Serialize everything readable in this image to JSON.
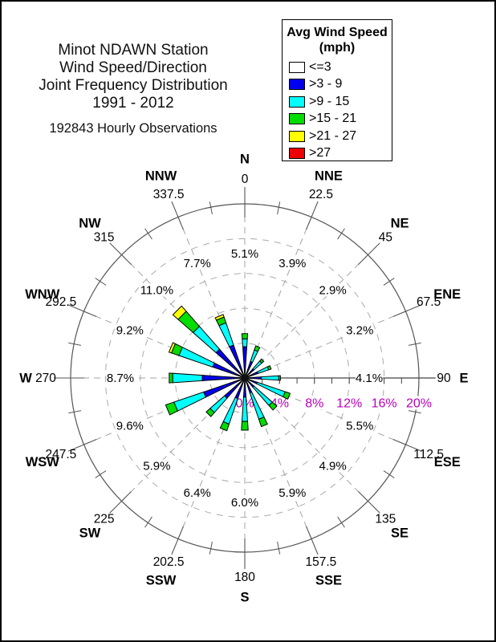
{
  "page": {
    "background_color": "#FFFFFF",
    "border_color": "#000000"
  },
  "title": {
    "lines": [
      "Minot NDAWN Station",
      "Wind Speed/Direction",
      "Joint Frequency Distribution",
      "1991 - 2012"
    ],
    "subtitle": "192843 Hourly Observations"
  },
  "legend": {
    "title_lines": [
      "Avg Wind Speed",
      "(mph)"
    ],
    "items": [
      {
        "label": "<=3",
        "color": "#FFFFFF"
      },
      {
        "label": ">3 - 9",
        "color": "#0000EE"
      },
      {
        "label": ">9 - 15",
        "color": "#00FFFF"
      },
      {
        "label": ">15 - 21",
        "color": "#00DD00"
      },
      {
        "label": ">21 - 27",
        "color": "#FFFF00"
      },
      {
        "label": ">27",
        "color": "#EE0000"
      }
    ]
  },
  "chart_data": {
    "type": "bar",
    "subtype": "wind-rose-polar-stacked",
    "title": "Wind Speed/Direction Joint Frequency Distribution",
    "units": "percent of hourly observations",
    "grid": "dashed rings every 4%, dashed spokes every 22.5 degrees",
    "legend_position": "top-right",
    "radial_axis": {
      "min": 0,
      "max": 20,
      "grid_rings_pct": [
        4,
        8,
        12,
        16
      ],
      "outer_ring_pct": 20,
      "minor_tick_step_pct": 2,
      "tick_labels": [
        {
          "value": 0,
          "label": "0%"
        },
        {
          "value": 4,
          "label": "4%"
        },
        {
          "value": 8,
          "label": "8%"
        },
        {
          "value": 12,
          "label": "12%"
        },
        {
          "value": 16,
          "label": "16%"
        },
        {
          "value": 20,
          "label": "20%"
        }
      ],
      "tick_label_color": "#BB00BB"
    },
    "speed_bins": [
      "<=3",
      ">3 - 9",
      ">9 - 15",
      ">15 - 21",
      ">21 - 27",
      ">27"
    ],
    "bin_colors": [
      "#FFFFFF",
      "#0000EE",
      "#00FFFF",
      "#00DD00",
      "#FFFF00",
      "#EE0000"
    ],
    "directions": [
      {
        "name": "N",
        "degrees_label": "0",
        "angle": 0,
        "total_label": "5.1%",
        "total_pct": 5.1,
        "segments_pct": [
          0,
          3.6,
          0.9,
          0.6,
          0,
          0
        ]
      },
      {
        "name": "NNE",
        "degrees_label": "22.5",
        "angle": 22.5,
        "total_label": "3.9%",
        "total_pct": 3.9,
        "segments_pct": [
          0,
          2.0,
          1.4,
          0.5,
          0,
          0
        ]
      },
      {
        "name": "NE",
        "degrees_label": "45",
        "angle": 45,
        "total_label": "2.9%",
        "total_pct": 2.9,
        "segments_pct": [
          0,
          1.4,
          1.2,
          0.3,
          0,
          0
        ]
      },
      {
        "name": "ENE",
        "degrees_label": "67.5",
        "angle": 67.5,
        "total_label": "3.2%",
        "total_pct": 3.2,
        "segments_pct": [
          0,
          1.6,
          1.3,
          0.3,
          0,
          0
        ]
      },
      {
        "name": "E",
        "degrees_label": "90",
        "angle": 90,
        "total_label": "4.1%",
        "total_pct": 4.1,
        "segments_pct": [
          0,
          1.9,
          2.0,
          0.2,
          0,
          0
        ]
      },
      {
        "name": "ESE",
        "degrees_label": "112.5",
        "angle": 112.5,
        "total_label": "5.5%",
        "total_pct": 5.5,
        "segments_pct": [
          0,
          1.5,
          3.4,
          0.6,
          0,
          0
        ]
      },
      {
        "name": "SE",
        "degrees_label": "135",
        "angle": 135,
        "total_label": "4.9%",
        "total_pct": 4.9,
        "segments_pct": [
          0,
          1.4,
          2.8,
          0.7,
          0,
          0
        ]
      },
      {
        "name": "SSE",
        "degrees_label": "157.5",
        "angle": 157.5,
        "total_label": "5.9%",
        "total_pct": 5.9,
        "segments_pct": [
          0,
          1.8,
          3.2,
          0.9,
          0,
          0
        ]
      },
      {
        "name": "S",
        "degrees_label": "180",
        "angle": 180,
        "total_label": "6.0%",
        "total_pct": 6.0,
        "segments_pct": [
          0,
          2.2,
          2.8,
          1.0,
          0,
          0
        ]
      },
      {
        "name": "SSW",
        "degrees_label": "202.5",
        "angle": 202.5,
        "total_label": "6.4%",
        "total_pct": 6.4,
        "segments_pct": [
          0,
          2.5,
          3.1,
          0.8,
          0,
          0
        ]
      },
      {
        "name": "SW",
        "degrees_label": "225",
        "angle": 225,
        "total_label": "5.9%",
        "total_pct": 5.9,
        "segments_pct": [
          0,
          3.1,
          2.2,
          0.6,
          0,
          0
        ]
      },
      {
        "name": "WSW",
        "degrees_label": "247.5",
        "angle": 247.5,
        "total_label": "9.6%",
        "total_pct": 9.6,
        "segments_pct": [
          0,
          5.0,
          3.6,
          1.0,
          0,
          0
        ]
      },
      {
        "name": "W",
        "degrees_label": "270",
        "angle": 270,
        "total_label": "8.7%",
        "total_pct": 8.7,
        "segments_pct": [
          0,
          4.9,
          3.4,
          0.4,
          0,
          0
        ]
      },
      {
        "name": "WNW",
        "degrees_label": "292.5",
        "angle": 292.5,
        "total_label": "9.2%",
        "total_pct": 9.2,
        "segments_pct": [
          0,
          3.9,
          4.1,
          0.9,
          0.3,
          0
        ]
      },
      {
        "name": "NW",
        "degrees_label": "315",
        "angle": 315,
        "total_label": "11.0%",
        "total_pct": 11.0,
        "segments_pct": [
          0,
          4.4,
          3.5,
          2.3,
          0.8,
          0
        ]
      },
      {
        "name": "NNW",
        "degrees_label": "337.5",
        "angle": 337.5,
        "total_label": "7.7%",
        "total_pct": 7.7,
        "segments_pct": [
          0,
          4.0,
          2.7,
          0.7,
          0.3,
          0
        ]
      }
    ]
  }
}
